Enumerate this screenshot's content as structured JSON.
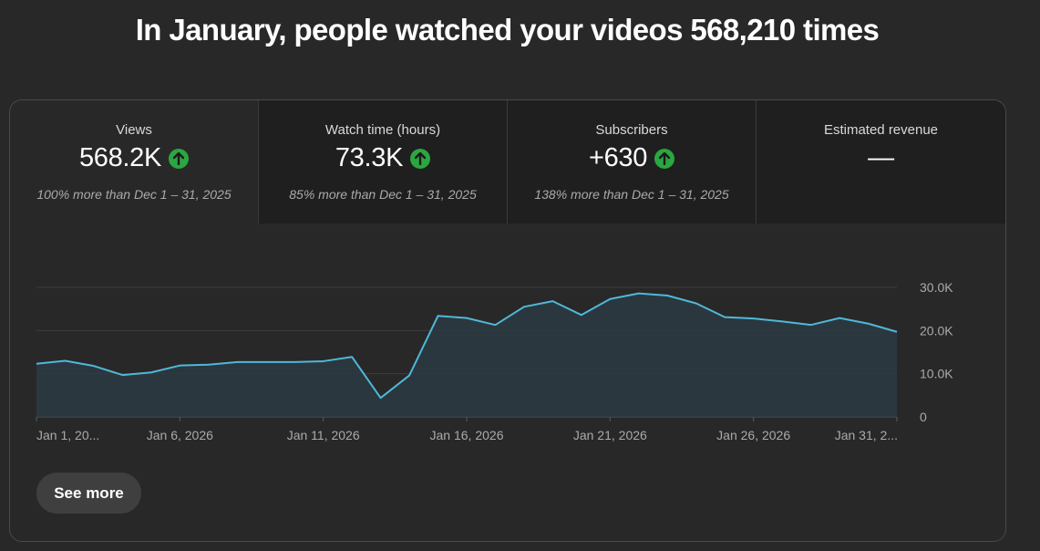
{
  "headline": "In January, people watched your videos 568,210 times",
  "metrics": [
    {
      "label": "Views",
      "value": "568.2K",
      "trend": "up",
      "comparison": "100% more than Dec 1 – 31, 2025"
    },
    {
      "label": "Watch time (hours)",
      "value": "73.3K",
      "trend": "up",
      "comparison": "85% more than Dec 1 – 31, 2025"
    },
    {
      "label": "Subscribers",
      "value": "+630",
      "trend": "up",
      "comparison": "138% more than Dec 1 – 31, 2025"
    },
    {
      "label": "Estimated revenue",
      "value": "—",
      "trend": "none",
      "comparison": ""
    }
  ],
  "see_more_label": "See more",
  "colors": {
    "line": "#4fb8d9",
    "area": "#2b3a42",
    "trend_up": "#2ba640"
  },
  "chart_data": {
    "type": "area",
    "x_tick_labels": [
      "Jan 1, 20...",
      "Jan 6, 2026",
      "Jan 11, 2026",
      "Jan 16, 2026",
      "Jan 21, 2026",
      "Jan 26, 2026",
      "Jan 31, 2..."
    ],
    "x_tick_days": [
      1,
      6,
      11,
      16,
      21,
      26,
      31
    ],
    "y_tick_labels": [
      "30.0K",
      "20.0K",
      "10.0K",
      "0"
    ],
    "y_tick_values": [
      30000,
      20000,
      10000,
      0
    ],
    "ylim": [
      0,
      30000
    ],
    "grid": true,
    "series": [
      {
        "x": [
          1,
          2,
          3,
          4,
          5,
          6,
          7,
          8,
          9,
          10,
          11,
          12,
          13,
          14,
          15,
          16,
          17,
          18,
          19,
          20,
          21,
          22,
          23,
          24,
          25,
          26,
          27,
          28,
          29,
          30,
          31
        ],
        "values": [
          12300,
          13000,
          11800,
          9700,
          10300,
          11900,
          12100,
          12700,
          12700,
          12700,
          12900,
          13900,
          4400,
          9600,
          23400,
          22900,
          21300,
          25500,
          26800,
          23600,
          27300,
          28600,
          28100,
          26300,
          23100,
          22800,
          22100,
          21300,
          22900,
          21600,
          19700
        ]
      }
    ]
  }
}
